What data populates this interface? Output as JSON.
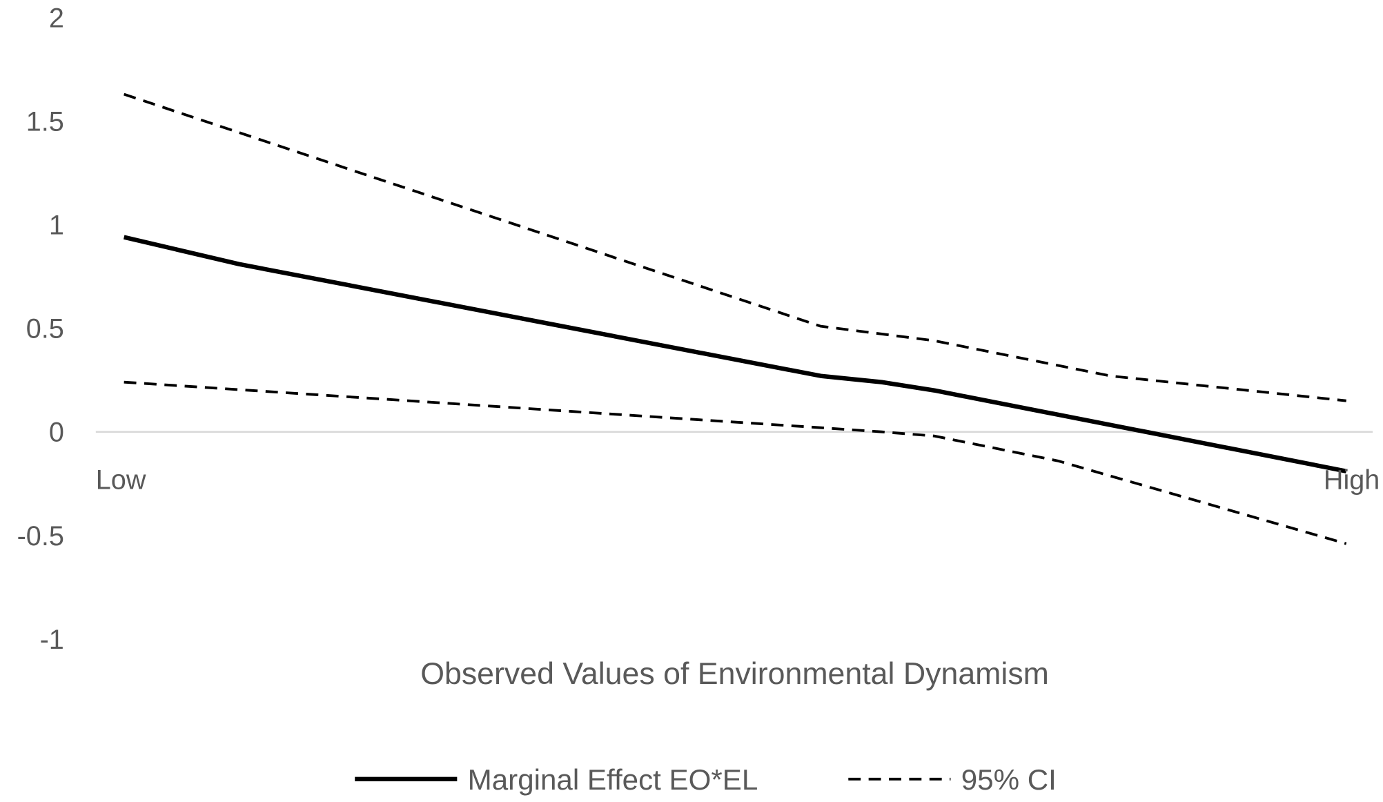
{
  "chart_data": {
    "type": "line",
    "title": "",
    "xlabel": "Observed Values of Environmental Dynamism",
    "ylabel": "",
    "ylim": [
      -1,
      2
    ],
    "xlim": [
      0,
      1
    ],
    "yticks": [
      "2",
      "1.5",
      "1",
      "0.5",
      "0",
      "-0.5",
      "-1"
    ],
    "ytick_values": [
      2,
      1.5,
      1,
      0.5,
      0,
      -0.5,
      -1
    ],
    "xtick_labels": {
      "low": "Low",
      "high": "High"
    },
    "grid": false,
    "zero_line": true,
    "legend_position": "bottom",
    "series": [
      {
        "name": "Marginal Effect EO*EL",
        "style": "solid",
        "color": "#000000",
        "x": [
          0,
          0.094,
          0.57,
          0.62,
          0.663,
          0.836,
          1
        ],
        "y": [
          0.94,
          0.81,
          0.27,
          0.24,
          0.2,
          0.0,
          -0.19
        ]
      },
      {
        "name": "95% CI",
        "style": "dashed",
        "color": "#000000",
        "x": [
          0,
          0.57,
          0.663,
          0.807,
          1
        ],
        "y": [
          1.63,
          0.51,
          0.44,
          0.27,
          0.15
        ]
      },
      {
        "name": "95% CI (lower)",
        "style": "dashed",
        "color": "#000000",
        "show_in_legend": false,
        "x": [
          0,
          0.57,
          0.62,
          0.663,
          0.764,
          1
        ],
        "y": [
          0.24,
          0.02,
          0.0,
          -0.02,
          -0.14,
          -0.54
        ]
      }
    ],
    "legend": [
      "Marginal Effect EO*EL",
      "95% CI"
    ]
  }
}
